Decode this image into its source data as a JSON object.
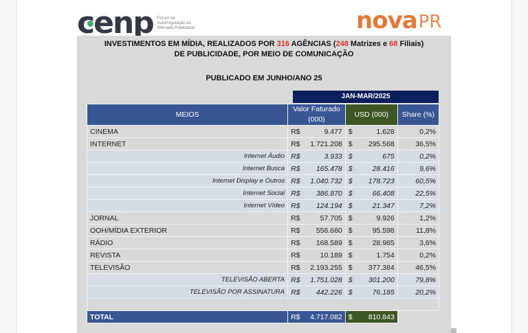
{
  "logos": {
    "cenp": {
      "word": "cenp",
      "tagline": "Fórum da Autorregulação do Mercado Publicitário",
      "accent": "#3fae6c",
      "color": "#333a46"
    },
    "novapr": {
      "word": "nova",
      "suffix": "PR",
      "color": "#e07b3c"
    }
  },
  "header": {
    "line1_a": "INVESTIMENTOS EM MÍDIA, REALIZADOS POR ",
    "agencies_total": "316",
    "line1_b": " AGÊNCIAS (",
    "matrizes": "248",
    "line1_c": " Matrizes e ",
    "filiais": "68",
    "line1_d": " Filiais)",
    "line2": "DE PUBLICIDADE, POR MEIO DE COMUNICAÇÃO",
    "published": "PUBLICADO EM JUNHO/ANO 25"
  },
  "table": {
    "period": "JAN-MAR/2025",
    "columns": {
      "meios": "MEIOS",
      "valor": "Valor Faturado (000)",
      "usd": "USD (000)",
      "share": "Share (%)"
    },
    "currency_brl": "R$",
    "currency_usd": "$",
    "rows": [
      {
        "name": "CINEMA",
        "brl": "9.477",
        "usd": "1.628",
        "share": "0,2%",
        "sub": false
      },
      {
        "name": "INTERNET",
        "brl": "1.721.208",
        "usd": "295.568",
        "share": "36,5%",
        "sub": false
      },
      {
        "name": "Internet Áudio",
        "brl": "3.933",
        "usd": "675",
        "share": "0,2%",
        "sub": true
      },
      {
        "name": "Internet Busca",
        "brl": "165.478",
        "usd": "28.416",
        "share": "9,6%",
        "sub": true
      },
      {
        "name": "Internet Display e Outros",
        "brl": "1.040.732",
        "usd": "178.723",
        "share": "60,5%",
        "sub": true
      },
      {
        "name": "Internet Social",
        "brl": "386.870",
        "usd": "66.408",
        "share": "22,5%",
        "sub": true
      },
      {
        "name": "Internet Vídeo",
        "brl": "124.194",
        "usd": "21.347",
        "share": "7,2%",
        "sub": true
      },
      {
        "name": "JORNAL",
        "brl": "57.705",
        "usd": "9.926",
        "share": "1,2%",
        "sub": false
      },
      {
        "name": "OOH/MÍDIA EXTERIOR",
        "brl": "556.660",
        "usd": "95.598",
        "share": "11,8%",
        "sub": false
      },
      {
        "name": "RÁDIO",
        "brl": "168.589",
        "usd": "28.985",
        "share": "3,6%",
        "sub": false
      },
      {
        "name": "REVISTA",
        "brl": "10.189",
        "usd": "1.754",
        "share": "0,2%",
        "sub": false
      },
      {
        "name": "TELEVISÃO",
        "brl": "2.193.255",
        "usd": "377.384",
        "share": "46,5%",
        "sub": false
      },
      {
        "name": "TELEVISÃO ABERTA",
        "brl": "1.751.028",
        "usd": "301.200",
        "share": "79,8%",
        "sub": true
      },
      {
        "name": "TELEVISÃO POR ASSINATURA",
        "brl": "442.226",
        "usd": "76.185",
        "share": "20,2%",
        "sub": true
      }
    ],
    "total": {
      "label": "TOTAL",
      "brl": "4.717.082",
      "usd": "810.843"
    }
  },
  "colors": {
    "header_blue": "#385594",
    "period_navy": "#0b1f5c",
    "usd_green": "#3d5624",
    "highlight_red": "#e0312a",
    "sheet_gray": "#d9d9d9",
    "sub_row": "#d6dce4"
  }
}
